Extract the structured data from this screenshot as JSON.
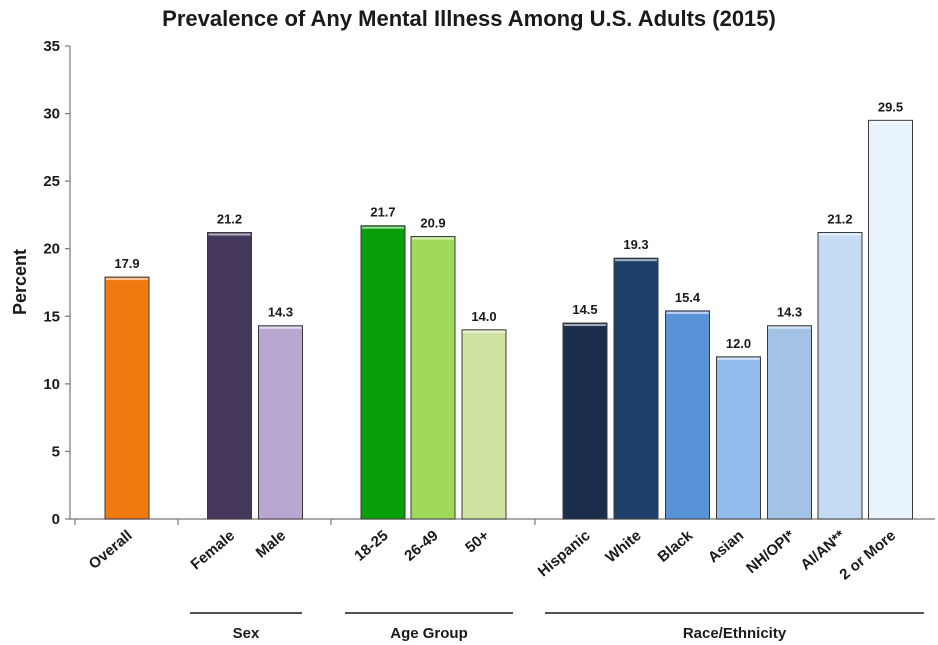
{
  "chart_data": {
    "type": "bar",
    "title": "Prevalence of Any Mental Illness Among U.S. Adults (2015)",
    "ylabel": "Percent",
    "xlabel": "",
    "ylim": [
      0,
      35
    ],
    "yticks": [
      0,
      5,
      10,
      15,
      20,
      25,
      30,
      35
    ],
    "grid": false,
    "legend": "none",
    "categories": [
      "Overall",
      "Female",
      "Male",
      "18-25",
      "26-49",
      "50+",
      "Hispanic",
      "White",
      "Black",
      "Asian",
      "NH/OPI*",
      "AI/AN**",
      "2 or More"
    ],
    "values": [
      17.9,
      21.2,
      14.3,
      21.7,
      20.9,
      14.0,
      14.5,
      19.3,
      15.4,
      12.0,
      14.3,
      21.2,
      29.5
    ],
    "value_labels": [
      "17.9",
      "21.2",
      "14.3",
      "21.7",
      "20.9",
      "14.0",
      "14.5",
      "19.3",
      "15.4",
      "12.0",
      "14.3",
      "21.2",
      "29.5"
    ],
    "bar_colors": [
      "#f07a10",
      "#46385c",
      "#b8a7d0",
      "#0a9e0a",
      "#9fd959",
      "#d0e3a3",
      "#1b2f4d",
      "#1f3f6b",
      "#5a92d8",
      "#94bcec",
      "#a2c2e6",
      "#c5dbf4",
      "#e7f2fd"
    ],
    "groups": [
      {
        "label": "Sex",
        "categories": [
          "Female",
          "Male"
        ]
      },
      {
        "label": "Age Group",
        "categories": [
          "18-25",
          "26-49",
          "50+"
        ]
      },
      {
        "label": "Race/Ethnicity",
        "categories": [
          "Hispanic",
          "White",
          "Black",
          "Asian",
          "NH/OPI*",
          "AI/AN**",
          "2 or More"
        ]
      }
    ]
  }
}
